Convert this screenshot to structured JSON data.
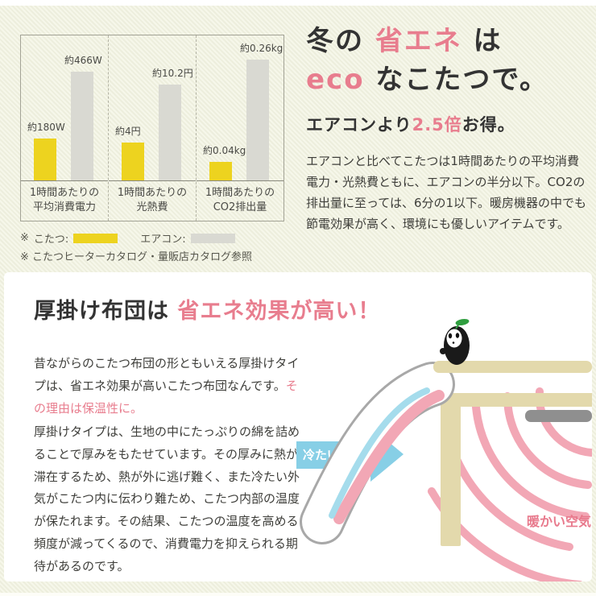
{
  "hero": {
    "title_line1": {
      "a": "冬の ",
      "accent": "省エネ",
      "b": " は"
    },
    "title_line2": {
      "accent": "eco",
      "a": " なこたつで。"
    },
    "subtitle": {
      "a": "エアコンより",
      "accent": "2.5倍",
      "b": "お得。"
    },
    "body": "エアコンと比べてこたつは1時間あたりの平均消費電力・光熱費ともに、エアコンの半分以下。CO2の排出量に至っては、6分の1以下。暖房機器の中でも節電効果が高く、環境にも優しいアイテムです。"
  },
  "chart_data": {
    "type": "bar",
    "title": "",
    "categories": [
      "1時間あたりの平均消費電力",
      "1時間あたりの光熱費",
      "1時間あたりのCO2排出量"
    ],
    "category_lines": [
      [
        "1時間あたりの",
        "平均消費電力"
      ],
      [
        "1時間あたりの",
        "光熱費"
      ],
      [
        "1時間あたりの",
        "CO2排出量"
      ]
    ],
    "series": [
      {
        "name": "こたつ",
        "color": "#edd31f",
        "values": [
          180,
          4,
          0.04
        ],
        "value_labels": [
          "約180W",
          "約4円",
          "約0.04kg"
        ]
      },
      {
        "name": "エアコン",
        "color": "#d9d9d2",
        "values": [
          466,
          10.2,
          0.26
        ],
        "value_labels": [
          "約466W",
          "約10.2円",
          "約0.26kg"
        ]
      }
    ],
    "ylims": [
      [
        0,
        620
      ],
      [
        0,
        15.4
      ],
      [
        0,
        0.312
      ]
    ],
    "grid": false,
    "legend_position": "below",
    "legend": {
      "mark": "※",
      "kotatsu": "こたつ:",
      "aircon": "エアコン:"
    },
    "source_note": "※ こたつヒーターカタログ・量販店カタログ参照"
  },
  "section2": {
    "heading": {
      "a": "厚掛け布団は ",
      "accent": "省エネ効果が高い！"
    },
    "para1": {
      "a": "昔ながらのこたつ布団の形ともいえる厚掛けタイプは、省エネ効果が高いこたつ布団なんです。",
      "accent": "その理由は保温性に。"
    },
    "para2": "厚掛けタイプは、生地の中にたっぷりの綿を詰めることで厚みをもたせています。その厚みに熱が滞在するため、熱が外に逃げ難く、また冷たい外気がこたつ内に伝わり難ため、こたつ内部の温度が保たれます。その結果、こたつの温度を高める頻度が減ってくるので、消費電力を抑えられる期待があるのです。",
    "illustration": {
      "cold_air_label": "冷たい空気",
      "warm_air_label": "暖かい空気"
    }
  },
  "colors": {
    "accent_pink": "#e87d8e",
    "bar_yellow": "#edd31f",
    "bar_gray": "#d9d9d2",
    "arrow_blue": "#87cfe6",
    "inner_air_blue": "#a5dcec",
    "warm_pink": "#f2a7b5",
    "table_beige": "#e3d9ac",
    "heater_gray": "#8f8f8f",
    "leaf_green": "#2f9e3f"
  }
}
